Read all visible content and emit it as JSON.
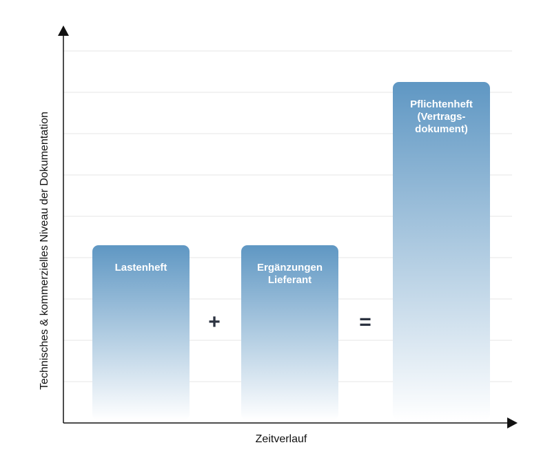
{
  "chart_data": {
    "type": "bar",
    "title": "",
    "xlabel": "Zeitverlauf",
    "ylabel": "Technisches & kommerzielles Niveau der Dokumentation",
    "ylim": [
      0,
      9
    ],
    "grid": true,
    "categories": [
      {
        "lines": [
          "Lastenheft"
        ]
      },
      {
        "lines": [
          "Ergänzungen",
          "Lieferant"
        ]
      },
      {
        "lines": [
          "Pflichtenheft",
          "(Vertrags-",
          "dokument)"
        ]
      }
    ],
    "values": [
      4.3,
      4.3,
      8.25
    ],
    "operators": [
      "+",
      "="
    ],
    "colors": {
      "bar_top": "#5f97c3",
      "bar_bottom": "#ffffff",
      "grid": "#e4e4e4",
      "axis": "#111111",
      "operator": "#2b3240"
    }
  }
}
